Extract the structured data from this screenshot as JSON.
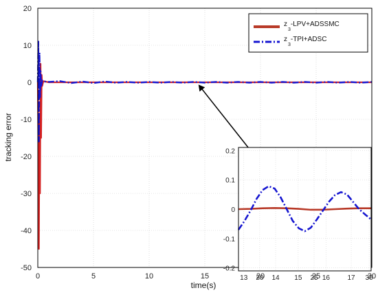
{
  "chart_data": [
    {
      "type": "line",
      "xlabel": "time(s)",
      "ylabel": "tracking error",
      "xlim": [
        0,
        30
      ],
      "ylim": [
        -50,
        20
      ],
      "xticks": [
        "0",
        "5",
        "10",
        "15",
        "20",
        "25",
        "30"
      ],
      "yticks": [
        "-50",
        "-40",
        "-30",
        "-20",
        "-10",
        "0",
        "10",
        "20"
      ],
      "grid": true,
      "legend_position": "top-right",
      "series": [
        {
          "name": "z3-LPV+ADSSMC",
          "legend_main": "z",
          "legend_sub": "3",
          "legend_rest": "-LPV+ADSSMC",
          "color": "#d42020",
          "style": "solid",
          "x": [
            0,
            0.05,
            0.1,
            0.15,
            0.2,
            0.25,
            0.3,
            0.35,
            0.4,
            0.5,
            1.0,
            2,
            5,
            10,
            15,
            20,
            25,
            30
          ],
          "y": [
            0,
            -20,
            -45,
            -10,
            -30,
            5,
            -15,
            2,
            -1,
            0.3,
            0,
            0,
            0,
            0,
            0,
            0,
            0,
            0
          ]
        },
        {
          "name": "z3-TPI+ADSC",
          "legend_main": "z",
          "legend_sub": "3",
          "legend_rest": "-TPI+ADSC",
          "color": "#1515d0",
          "style": "dashdot",
          "x": [
            0,
            0.05,
            0.1,
            0.15,
            0.2,
            0.25,
            0.3,
            0.4,
            0.6,
            1,
            2,
            3,
            4,
            5,
            6,
            7,
            8,
            9,
            10,
            11,
            12,
            13,
            14,
            15,
            16,
            17,
            18,
            19,
            20,
            21,
            22,
            23,
            24,
            25,
            26,
            27,
            28,
            29,
            30
          ],
          "y": [
            0,
            11,
            -16,
            8,
            -4,
            3,
            -1,
            0.5,
            0.2,
            0.1,
            0.3,
            -0.2,
            0.2,
            -0.2,
            0.2,
            -0.1,
            0.1,
            -0.1,
            0.1,
            -0.1,
            0.1,
            -0.1,
            0.1,
            -0.1,
            0.1,
            -0.1,
            0.1,
            -0.1,
            0.1,
            -0.1,
            0.1,
            -0.1,
            0.1,
            -0.1,
            0.1,
            -0.1,
            0.1,
            -0.1,
            0.1
          ]
        }
      ]
    },
    {
      "type": "line",
      "inset": true,
      "xlim": [
        12.5,
        18
      ],
      "ylim": [
        -0.21,
        0.21
      ],
      "xticks": [
        "13",
        "20",
        "14",
        "15",
        "25",
        "16",
        "17",
        "30"
      ],
      "yticks": [
        "-0.2",
        "-0.1",
        "0",
        "0.1",
        "0.2"
      ],
      "series": [
        {
          "name": "z3-LPV+ADSSMC",
          "color": "#b83a28",
          "style": "solid",
          "x": [
            12.5,
            13,
            13.5,
            14,
            14.5,
            15,
            15.5,
            16,
            16.5,
            17,
            17.5,
            18
          ],
          "y": [
            0,
            0.001,
            0.003,
            0.004,
            0.003,
            0.001,
            -0.002,
            -0.002,
            0,
            0.002,
            0.003,
            0.003
          ]
        },
        {
          "name": "z3-TPI+ADSC",
          "color": "#1515d0",
          "style": "dashdot",
          "x": [
            12.5,
            12.75,
            13.0,
            13.25,
            13.5,
            13.75,
            14.0,
            14.25,
            14.5,
            14.75,
            15.0,
            15.25,
            15.5,
            15.75,
            16.0,
            16.25,
            16.5,
            16.75,
            17.0,
            17.25,
            17.5,
            17.75,
            18.0
          ],
          "y": [
            -0.07,
            -0.04,
            -0.005,
            0.035,
            0.065,
            0.078,
            0.07,
            0.04,
            0.0,
            -0.04,
            -0.065,
            -0.075,
            -0.063,
            -0.035,
            -0.005,
            0.025,
            0.048,
            0.058,
            0.05,
            0.025,
            0.0,
            -0.018,
            -0.035
          ]
        }
      ]
    }
  ]
}
